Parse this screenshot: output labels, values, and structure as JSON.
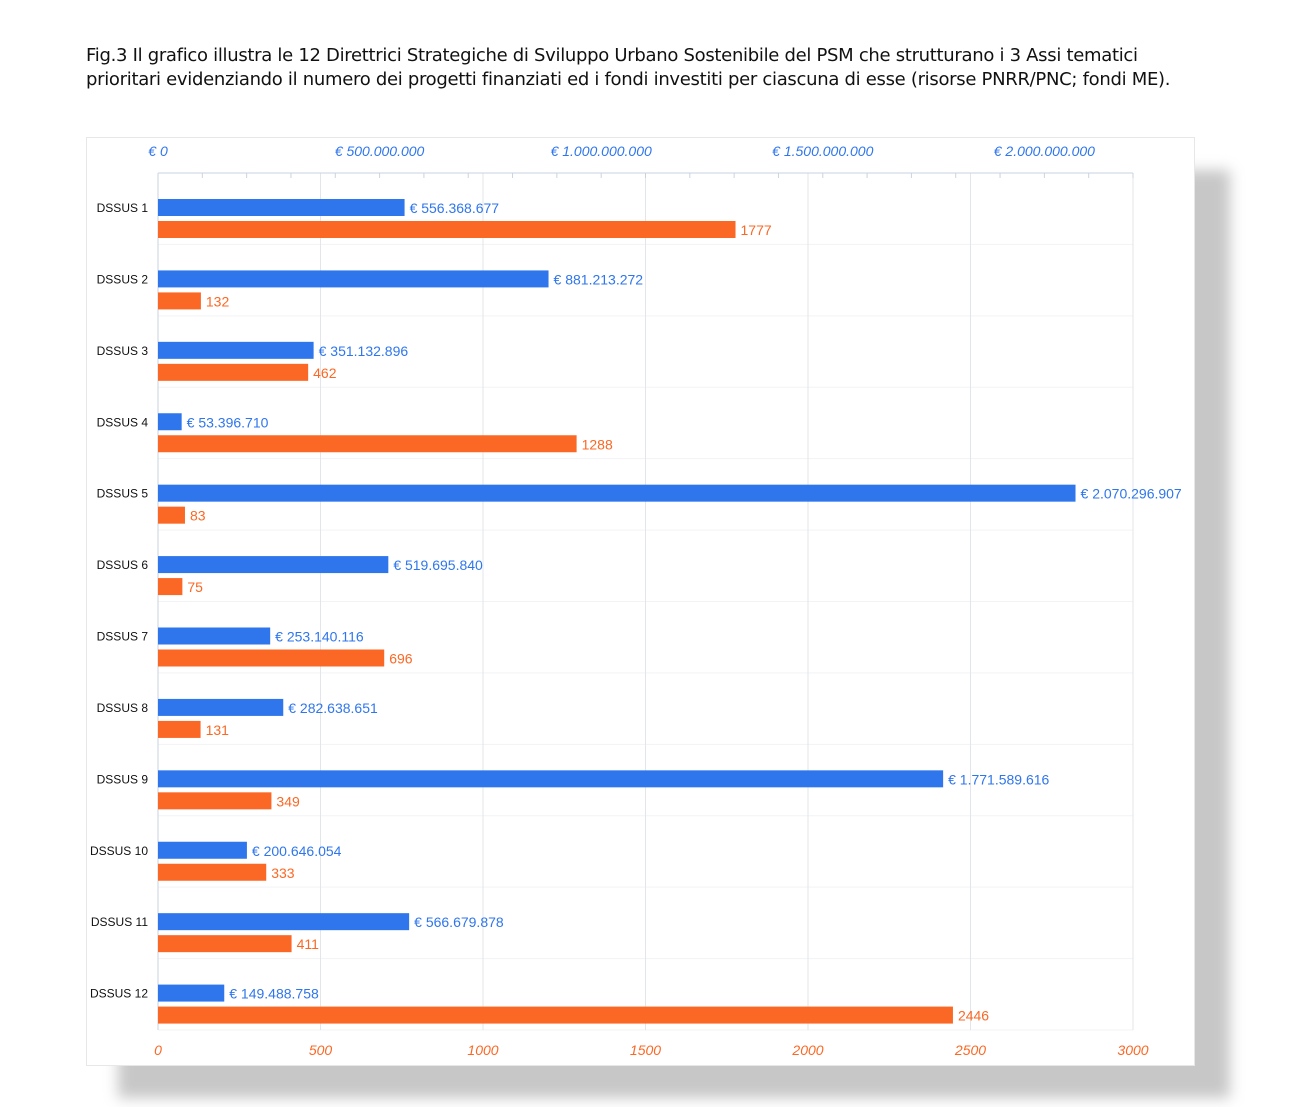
{
  "caption": "Fig.3 Il grafico illustra le 12 Direttrici Strategiche di Sviluppo Urbano Sostenibile del PSM che strutturano i 3 Assi tematici prioritari evidenziando il numero dei progetti finanziati ed i fondi investiti per ciascuna di esse (risorse PNRR/PNC; fondi ME).",
  "colors": {
    "funds": "#2f76ec",
    "projects": "#fb6825",
    "grid": "#e2e6ea",
    "category_text": "#111111"
  },
  "chart_data": {
    "type": "bar",
    "orientation": "horizontal",
    "title": "",
    "categories": [
      "DSSUS 1",
      "DSSUS 2",
      "DSSUS 3",
      "DSSUS 4",
      "DSSUS 5",
      "DSSUS 6",
      "DSSUS 7",
      "DSSUS 8",
      "DSSUS 9",
      "DSSUS 10",
      "DSSUS 11",
      "DSSUS 12"
    ],
    "series": [
      {
        "axis": "top",
        "values": [
          556368677,
          881213272,
          351132896,
          53396710,
          2070296907,
          519695840,
          253140116,
          282638651,
          1771589616,
          200646054,
          566679878,
          149488758
        ],
        "labels": [
          "€ 556.368.677",
          "€ 881.213.272",
          "€ 351.132.896",
          "€ 53.396.710",
          "€ 2.070.296.907",
          "€ 519.695.840",
          "€ 253.140.116",
          "€ 282.638.651",
          "€ 1.771.589.616",
          "€ 200.646.054",
          "€ 566.679.878",
          "€ 149.488.758"
        ]
      },
      {
        "axis": "bottom",
        "values": [
          1777,
          132,
          462,
          1288,
          83,
          75,
          696,
          131,
          349,
          333,
          411,
          2446
        ],
        "labels": [
          "1777",
          "132",
          "462",
          "1288",
          "83",
          "75",
          "696",
          "131",
          "349",
          "333",
          "411",
          "2446"
        ]
      }
    ],
    "top_axis": {
      "range": [
        0,
        2200000000
      ],
      "ticks": [
        0,
        500000000,
        1000000000,
        1500000000,
        2000000000
      ],
      "tick_labels": [
        "€ 0",
        "€ 500.000.000",
        "€ 1.000.000.000",
        "€ 1.500.000.000",
        "€ 2.000.000.000"
      ]
    },
    "bottom_axis": {
      "range": [
        0,
        3000
      ],
      "ticks": [
        0,
        500,
        1000,
        1500,
        2000,
        2500,
        3000
      ],
      "tick_labels": [
        "0",
        "500",
        "1000",
        "1500",
        "2000",
        "2500",
        "3000"
      ]
    },
    "grid": true,
    "legend": "none"
  }
}
